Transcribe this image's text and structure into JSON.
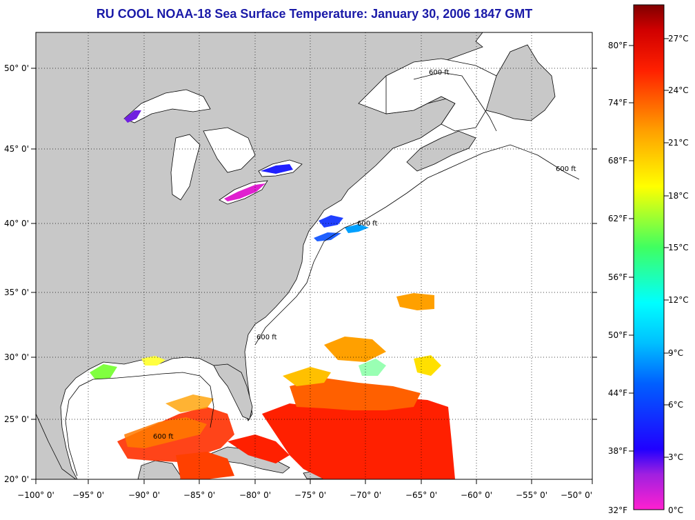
{
  "title": "RU COOL  NOAA-18  Sea Surface Temperature:  January 30, 2006 1847 GMT",
  "lon_labels": [
    "−100° 0'",
    "−95° 0'",
    "−90° 0'",
    "−85° 0'",
    "−80° 0'",
    "−75° 0'",
    "−70° 0'",
    "−65° 0'",
    "−60° 0'",
    "−55° 0'",
    "−50° 0'"
  ],
  "lat_labels": [
    "50° 0'",
    "45° 0'",
    "40° 0'",
    "35° 0'",
    "30° 0'",
    "25° 0'",
    "20° 0'"
  ],
  "contour_label": "600 ft",
  "colorbar": {
    "f_labels": [
      "80°F",
      "74°F",
      "68°F",
      "62°F",
      "56°F",
      "50°F",
      "44°F",
      "38°F",
      "32°F"
    ],
    "c_labels": [
      "27°C",
      "24°C",
      "21°C",
      "18°C",
      "15°C",
      "12°C",
      "9°C",
      "6°C",
      "3°C",
      "0°C"
    ],
    "colors": [
      "#ff20d0",
      "#8020e0",
      "#0000ff",
      "#00a0ff",
      "#00ffff",
      "#40ff80",
      "#ffff00",
      "#ffa000",
      "#ff3000",
      "#c00000",
      "#800000"
    ]
  },
  "colors": {
    "land": "#c8c8c8",
    "ocean": "#ffffff",
    "title": "#1a1aa8"
  }
}
